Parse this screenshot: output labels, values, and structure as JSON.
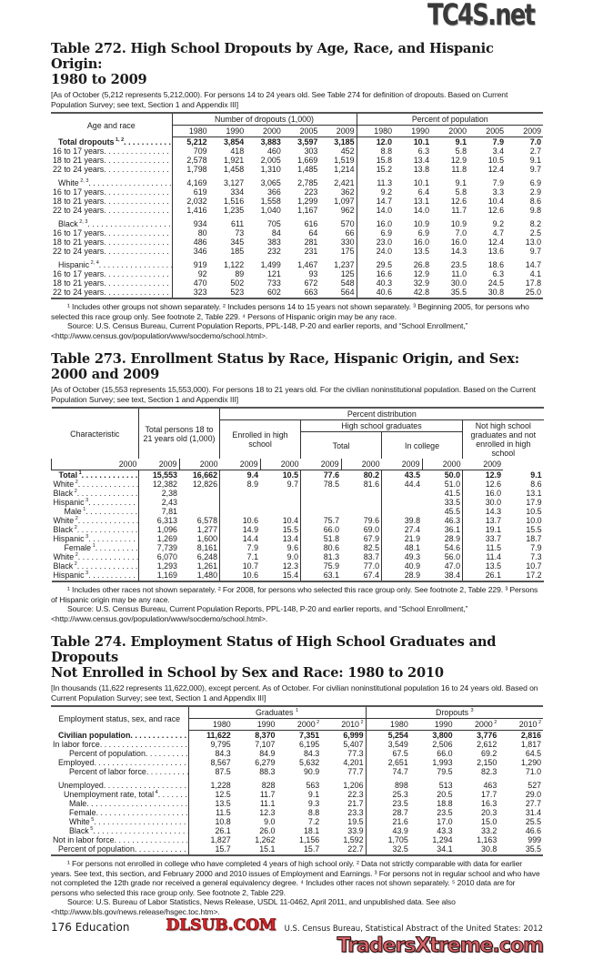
{
  "watermarks": {
    "top": "TC4S.net",
    "middle": "DLSUB.COM",
    "bottom": "TradersXtreme.com"
  },
  "t272": {
    "title_line1": "Table 272. High School Dropouts by Age, Race, and Hispanic Origin:",
    "title_line2": "1980 to 2009",
    "note": "[As of October (5,212 represents 5,212,000). For persons 14 to 24 years old. See Table 274 for definition of dropouts. Based on Current Population Survey; see text, Section 1 and Appendix III]",
    "stub_header": "Age and race",
    "group1": "Number of dropouts (1,000)",
    "group2": "Percent of population",
    "years": [
      "1980",
      "1990",
      "2000",
      "2005",
      "2009",
      "1980",
      "1990",
      "2000",
      "2005",
      "2009"
    ],
    "rows": [
      {
        "label": "Total dropouts",
        "sup": "1, 2",
        "level": 1,
        "bold": true,
        "values": [
          "5,212",
          "3,854",
          "3,883",
          "3,597",
          "3,185",
          "12.0",
          "10.1",
          "9.1",
          "7.9",
          "7.0"
        ]
      },
      {
        "label": "16 to 17 years",
        "level": 0,
        "values": [
          "709",
          "418",
          "460",
          "303",
          "452",
          "8.8",
          "6.3",
          "5.8",
          "3.4",
          "2.7"
        ]
      },
      {
        "label": "18 to 21 years",
        "level": 0,
        "values": [
          "2,578",
          "1,921",
          "2,005",
          "1,669",
          "1,519",
          "15.8",
          "13.4",
          "12.9",
          "10.5",
          "9.1"
        ]
      },
      {
        "label": "22 to 24 years",
        "level": 0,
        "values": [
          "1,798",
          "1,458",
          "1,310",
          "1,485",
          "1,214",
          "15.2",
          "13.8",
          "11.8",
          "12.4",
          "9.7"
        ]
      },
      {
        "label": "White",
        "sup": "2, 3",
        "level": 1,
        "group_start": true,
        "values": [
          "4,169",
          "3,127",
          "3,065",
          "2,785",
          "2,421",
          "11.3",
          "10.1",
          "9.1",
          "7.9",
          "6.9"
        ]
      },
      {
        "label": "16 to 17 years",
        "level": 0,
        "values": [
          "619",
          "334",
          "366",
          "223",
          "362",
          "9.2",
          "6.4",
          "5.8",
          "3.3",
          "2.9"
        ]
      },
      {
        "label": "18 to 21 years",
        "level": 0,
        "values": [
          "2,032",
          "1,516",
          "1,558",
          "1,299",
          "1,097",
          "14.7",
          "13.1",
          "12.6",
          "10.4",
          "8.6"
        ]
      },
      {
        "label": "22 to 24 years",
        "level": 0,
        "values": [
          "1,416",
          "1,235",
          "1,040",
          "1,167",
          "962",
          "14.0",
          "14.0",
          "11.7",
          "12.6",
          "9.8"
        ]
      },
      {
        "label": "Black",
        "sup": "2, 3",
        "level": 1,
        "group_start": true,
        "values": [
          "934",
          "611",
          "705",
          "616",
          "570",
          "16.0",
          "10.9",
          "10.9",
          "9.2",
          "8.2"
        ]
      },
      {
        "label": "16 to 17 years",
        "level": 0,
        "values": [
          "80",
          "73",
          "84",
          "64",
          "66",
          "6.9",
          "6.9",
          "7.0",
          "4.7",
          "2.5"
        ]
      },
      {
        "label": "18 to 21 years",
        "level": 0,
        "values": [
          "486",
          "345",
          "383",
          "281",
          "330",
          "23.0",
          "16.0",
          "16.0",
          "12.4",
          "13.0"
        ]
      },
      {
        "label": "22 to 24 years",
        "level": 0,
        "values": [
          "346",
          "185",
          "232",
          "231",
          "175",
          "24.0",
          "13.5",
          "14.3",
          "13.6",
          "9.7"
        ]
      },
      {
        "label": "Hispanic",
        "sup": "2, 4",
        "level": 1,
        "group_start": true,
        "values": [
          "919",
          "1,122",
          "1,499",
          "1,467",
          "1,237",
          "29.5",
          "26.8",
          "23.5",
          "18.6",
          "14.7"
        ]
      },
      {
        "label": "16 to 17 years",
        "level": 0,
        "values": [
          "92",
          "89",
          "121",
          "93",
          "125",
          "16.6",
          "12.9",
          "11.0",
          "6.3",
          "4.1"
        ]
      },
      {
        "label": "18 to 21 years",
        "level": 0,
        "values": [
          "470",
          "502",
          "733",
          "672",
          "548",
          "40.3",
          "32.9",
          "30.0",
          "24.5",
          "17.8"
        ]
      },
      {
        "label": "22 to 24 years",
        "level": 0,
        "values": [
          "323",
          "523",
          "602",
          "663",
          "564",
          "40.6",
          "42.8",
          "35.5",
          "30.8",
          "25.0"
        ]
      }
    ],
    "footnotes": "¹ Includes other groups not shown separately. ² Includes persons 14 to 15 years not shown separately. ³ Beginning 2005, for persons who selected this race group only. See footnote 2, Table 229. ⁴ Persons of Hispanic origin may be any race.",
    "source": "Source: U.S. Census Bureau, Current Population Reports, PPL-148, P-20 and earlier reports, and “School Enrollment,” <http://www.census.gov/population/www/socdemo/school.html>."
  },
  "t273": {
    "title_line1": "Table 273. Enrollment Status by Race, Hispanic Origin, and Sex:",
    "title_line2": "2000 and 2009",
    "note": "[As of October (15,553 represents 15,553,000). For persons 18 to 21 years old. For the civilian noninstitutional population. Based on the Current Population Survey; see text, Section 1 and Appendix III]",
    "stub_header": "Characteristic",
    "total_persons": "Total persons 18 to 21 years old (1,000)",
    "percent_distribution": "Percent distribution",
    "enrolled": "Enrolled in high school",
    "hs_graduates": "High school graduates",
    "total": "Total",
    "in_college": "In college",
    "not_hs_grad": "Not high school graduates and not enrolled in high school",
    "years": [
      "2000",
      "2009",
      "2000",
      "2009",
      "2000",
      "2009",
      "2000",
      "2009",
      "2000",
      "2009"
    ],
    "rows": [
      {
        "label": "Total",
        "sup": "1",
        "level": 1,
        "bold": true,
        "values": [
          "15,553",
          "16,662",
          "9.4",
          "10.5",
          "77.6",
          "80.2",
          "43.5",
          "50.0",
          "12.9",
          "9.1"
        ]
      },
      {
        "label": "White",
        "sup": "2",
        "level": 0,
        "values": [
          "12,382",
          "12,826",
          "8.9",
          "9.7",
          "78.5",
          "81.6",
          "44.4",
          "51.0",
          "12.6",
          "8.6"
        ]
      },
      {
        "label": "Black",
        "sup": "2",
        "level": 0,
        "values": [
          "2,38",
          "",
          "",
          "",
          "",
          "",
          "",
          "41.5",
          "16.0",
          "13.1"
        ]
      },
      {
        "label": "Hispanic",
        "sup": "3",
        "level": 0,
        "values": [
          "2,43",
          "",
          "",
          "",
          "",
          "",
          "",
          "33.5",
          "30.0",
          "17.9"
        ]
      },
      {
        "label": "Male",
        "sup": "1",
        "level": 2,
        "values": [
          "7,81",
          "",
          "",
          "",
          "",
          "",
          "",
          "45.5",
          "14.3",
          "10.5"
        ]
      },
      {
        "label": "White",
        "sup": "2",
        "level": 0,
        "values": [
          "6,313",
          "6,578",
          "10.6",
          "10.4",
          "75.7",
          "79.6",
          "39.8",
          "46.3",
          "13.7",
          "10.0"
        ]
      },
      {
        "label": "Black",
        "sup": "2",
        "level": 0,
        "values": [
          "1,096",
          "1,277",
          "14.9",
          "15.5",
          "66.0",
          "69.0",
          "27.4",
          "36.1",
          "19.1",
          "15.5"
        ]
      },
      {
        "label": "Hispanic",
        "sup": "3",
        "level": 0,
        "values": [
          "1,269",
          "1,600",
          "14.4",
          "13.4",
          "51.8",
          "67.9",
          "21.9",
          "28.9",
          "33.7",
          "18.7"
        ]
      },
      {
        "label": "Female",
        "sup": "1",
        "level": 2,
        "values": [
          "7,739",
          "8,161",
          "7.9",
          "9.6",
          "80.6",
          "82.5",
          "48.1",
          "54.6",
          "11.5",
          "7.9"
        ]
      },
      {
        "label": "White",
        "sup": "2",
        "level": 0,
        "values": [
          "6,070",
          "6,248",
          "7.1",
          "9.0",
          "81.3",
          "83.7",
          "49.3",
          "56.0",
          "11.4",
          "7.3"
        ]
      },
      {
        "label": "Black",
        "sup": "2",
        "level": 0,
        "values": [
          "1,293",
          "1,261",
          "10.7",
          "12.3",
          "75.9",
          "77.0",
          "40.9",
          "47.0",
          "13.5",
          "10.7"
        ]
      },
      {
        "label": "Hispanic",
        "sup": "3",
        "level": 0,
        "values": [
          "1,169",
          "1,480",
          "10.6",
          "15.4",
          "63.1",
          "67.4",
          "28.9",
          "38.4",
          "26.1",
          "17.2"
        ]
      }
    ],
    "footnotes": "¹ Includes other races not shown separately. ² For 2008, for persons who selected this race group only. See footnote 2, Table 229. ³ Persons of Hispanic origin may be any race.",
    "source": "Source: U.S. Census Bureau, Current Population Reports, PPL-148, P-20 and earlier reports, and “School Enrollment,” <http://www.census.gov/population/www/socdemo/school.html>."
  },
  "t274": {
    "title_line1": "Table 274. Employment Status of High School Graduates and Dropouts",
    "title_line2": "Not Enrolled in School by Sex and Race: 1980 to 2010",
    "note": "[In thousands (11,622 represents 11,622,000), except percent. As of October. For civilian noninstitutional population 16 to 24 years old. Based on Current Population Survey; see text, Section 1 and Appendix III]",
    "stub_header": "Employment status, sex, and race",
    "group1": "Graduates",
    "group1_sup": "1",
    "group2": "Dropouts",
    "group2_sup": "3",
    "years": [
      {
        "y": "1980"
      },
      {
        "y": "1990"
      },
      {
        "y": "2000",
        "sup": "2"
      },
      {
        "y": "2010",
        "sup": "2"
      },
      {
        "y": "1980"
      },
      {
        "y": "1990"
      },
      {
        "y": "2000",
        "sup": "2"
      },
      {
        "y": "2010",
        "sup": "2"
      }
    ],
    "rows": [
      {
        "label": "Civilian population",
        "level": 1,
        "bold": true,
        "values": [
          "11,622",
          "8,370",
          "7,351",
          "6,999",
          "5,254",
          "3,800",
          "3,776",
          "2,816"
        ]
      },
      {
        "label": "In labor force",
        "level": 0,
        "values": [
          "9,795",
          "7,107",
          "6,195",
          "5,407",
          "3,549",
          "2,506",
          "2,612",
          "1,817"
        ]
      },
      {
        "label": "Percent of population",
        "level": 3,
        "values": [
          "84.3",
          "84.9",
          "84.3",
          "77.3",
          "67.5",
          "66.0",
          "69.2",
          "64.5"
        ]
      },
      {
        "label": "Employed",
        "level": 1,
        "values": [
          "8,567",
          "6,279",
          "5,632",
          "4,201",
          "2,651",
          "1,993",
          "2,150",
          "1,290"
        ]
      },
      {
        "label": "Percent of labor force",
        "level": 3,
        "values": [
          "87.5",
          "88.3",
          "90.9",
          "77.7",
          "74.7",
          "79.5",
          "82.3",
          "71.0"
        ]
      },
      {
        "label": "Unemployed",
        "level": 1,
        "group_start": true,
        "values": [
          "1,228",
          "828",
          "563",
          "1,206",
          "898",
          "513",
          "463",
          "527"
        ]
      },
      {
        "label": "Unemployment rate, total",
        "sup": "4",
        "level": 2,
        "values": [
          "12.5",
          "11.7",
          "9.1",
          "22.3",
          "25.3",
          "20.5",
          "17.7",
          "29.0"
        ]
      },
      {
        "label": "Male",
        "level": 3,
        "values": [
          "13.5",
          "11.1",
          "9.3",
          "21.7",
          "23.5",
          "18.8",
          "16.3",
          "27.7"
        ]
      },
      {
        "label": "Female",
        "level": 3,
        "values": [
          "11.5",
          "12.3",
          "8.8",
          "23.3",
          "28.7",
          "23.5",
          "20.3",
          "31.4"
        ]
      },
      {
        "label": "White",
        "sup": "5",
        "level": 3,
        "values": [
          "10.8",
          "9.0",
          "7.2",
          "19.5",
          "21.6",
          "17.0",
          "15.0",
          "25.5"
        ]
      },
      {
        "label": "Black",
        "sup": "5",
        "level": 3,
        "values": [
          "26.1",
          "26.0",
          "18.1",
          "33.9",
          "43.9",
          "43.3",
          "33.2",
          "46.6"
        ]
      },
      {
        "label": "Not in labor force",
        "level": 0,
        "values": [
          "1,827",
          "1,262",
          "1,156",
          "1,592",
          "1,705",
          "1,294",
          "1,163",
          "999"
        ]
      },
      {
        "label": "Percent of population",
        "level": 1,
        "values": [
          "15.7",
          "15.1",
          "15.7",
          "22.7",
          "32.5",
          "34.1",
          "30.8",
          "35.5"
        ]
      }
    ],
    "footnotes": "¹ For persons not enrolled in college who have completed 4 years of high school only. ² Data not strictly comparable with data for earlier years. See text, this section, and February 2000 and 2010 issues of Employment and Earnings. ³ For persons not in regular school and who have not completed the 12th grade nor received a general equivalency degree. ⁴ Includes other races not shown separately. ⁵ 2010 data are for persons who selected this race group only. See footnote 2, Table 229.",
    "source": "Source: U.S. Bureau of Labor Statistics, News Release, USDL 11-0462, April 2011, and unpublished data. See also <http://www.bls.gov/news.release/hsgec.toc.htm>."
  },
  "footer": {
    "page": "176  Education",
    "credit": "U.S. Census Bureau, Statistical Abstract of the United States: 2012"
  }
}
